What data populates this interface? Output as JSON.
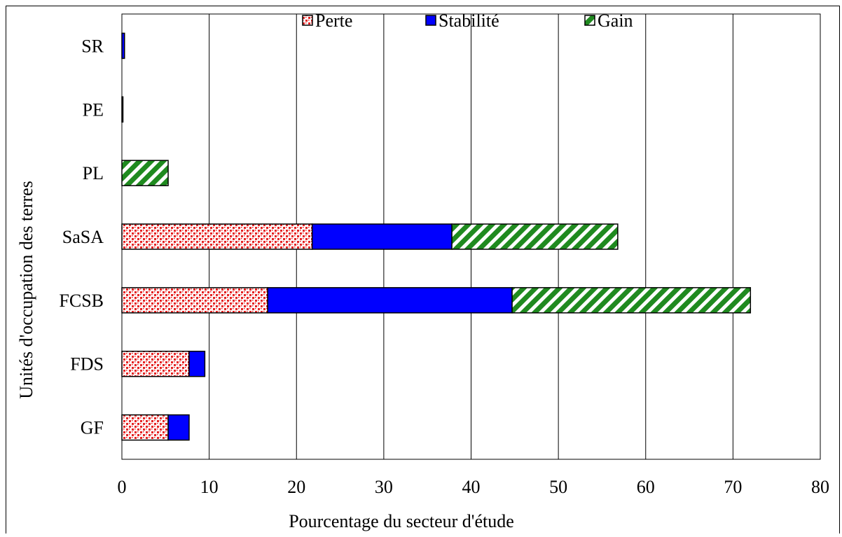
{
  "chart_data": {
    "type": "bar",
    "orientation": "horizontal",
    "stacked": true,
    "title": "",
    "xlabel": "Pourcentage du secteur d'étude",
    "ylabel": "Unités d'occupation des terres",
    "xlim": [
      0,
      80
    ],
    "xticks": [
      "0",
      "10",
      "20",
      "30",
      "40",
      "50",
      "60",
      "70",
      "80"
    ],
    "grid": "vertical",
    "legend_position": "top",
    "categories": [
      "GF",
      "FDS",
      "FCSB",
      "SaSA",
      "PL",
      "PE",
      "SR"
    ],
    "series": [
      {
        "name": "Perte",
        "values": [
          5.3,
          7.7,
          16.7,
          21.8,
          0,
          0,
          0
        ],
        "color": "#e52222",
        "pattern": "dots"
      },
      {
        "name": "Stabilité",
        "values": [
          2.4,
          1.8,
          28.0,
          16.0,
          0,
          0.1,
          0.3
        ],
        "color": "#0000ff",
        "pattern": "solid"
      },
      {
        "name": "Gain",
        "values": [
          0,
          0,
          27.3,
          19.0,
          5.3,
          0,
          0
        ],
        "color": "#1f8a1f",
        "pattern": "stripes"
      }
    ]
  }
}
